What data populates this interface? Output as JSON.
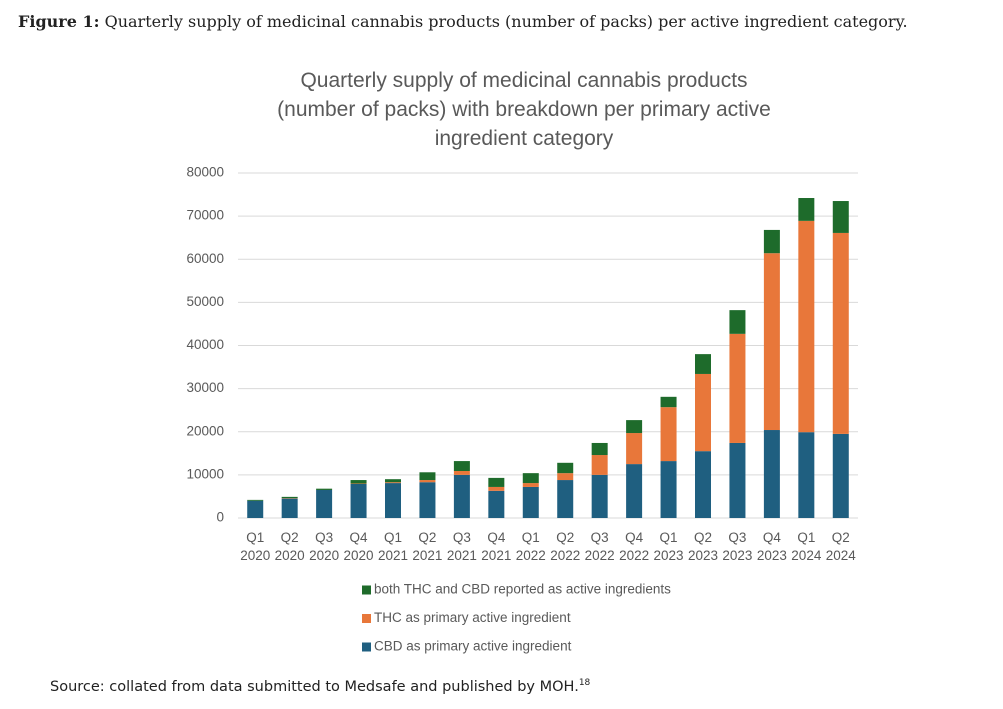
{
  "caption": {
    "label": "Figure 1:",
    "text": "Quarterly supply of medicinal cannabis products (number of packs) per active ingredient category."
  },
  "source": {
    "text": "Source: collated from data submitted to Medsafe and published by MOH.",
    "note": "18"
  },
  "chart_data": {
    "type": "stacked_bar",
    "title": "Quarterly supply of medicinal cannabis products (number of packs) with breakdown per primary active  ingredient category",
    "categories": [
      "Q1 2020",
      "Q2 2020",
      "Q3 2020",
      "Q4 2020",
      "Q1 2021",
      "Q2 2021",
      "Q3 2021",
      "Q4 2021",
      "Q1 2022",
      "Q2 2022",
      "Q3 2022",
      "Q4 2022",
      "Q1 2023",
      "Q2 2023",
      "Q3 2023",
      "Q4 2023",
      "Q1 2024",
      "Q2 2024"
    ],
    "series": [
      {
        "name": "CBD as primary active ingredient",
        "color": "#1f5f80",
        "values": [
          4000,
          4500,
          6500,
          7900,
          8100,
          8300,
          10000,
          6300,
          7200,
          8800,
          10000,
          12500,
          13200,
          15500,
          17400,
          20400,
          19900,
          19500
        ]
      },
      {
        "name": "THC as primary active ingredient",
        "color": "#e8773a",
        "values": [
          0,
          100,
          0,
          100,
          200,
          500,
          900,
          900,
          900,
          1600,
          4600,
          7200,
          12500,
          17900,
          25300,
          41000,
          49000,
          46600
        ]
      },
      {
        "name": "both THC and CBD reported as active ingredients",
        "color": "#1e6b2b",
        "values": [
          200,
          300,
          300,
          800,
          700,
          1800,
          2300,
          2100,
          2300,
          2400,
          2800,
          3000,
          2400,
          4600,
          5500,
          5400,
          5300,
          7400
        ]
      }
    ],
    "ylim": [
      0,
      80000
    ],
    "yticks": [
      0,
      10000,
      20000,
      30000,
      40000,
      50000,
      60000,
      70000,
      80000
    ],
    "grid": true
  }
}
